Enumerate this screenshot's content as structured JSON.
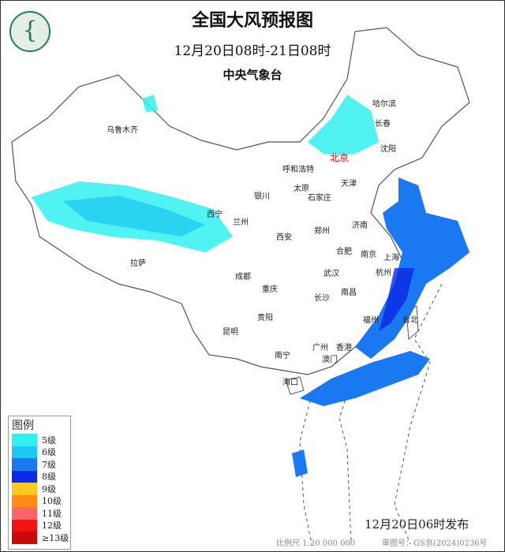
{
  "header": {
    "title": "全国大风预报图",
    "period": "12月20日08时-21日08时",
    "agency": "中央气象台"
  },
  "logo": {
    "icon": "cma-logo"
  },
  "legend": {
    "title": "图例",
    "items": [
      {
        "label": "5级",
        "color": "#33f0f0"
      },
      {
        "label": "6级",
        "color": "#1ac8f0"
      },
      {
        "label": "7级",
        "color": "#1a78f0"
      },
      {
        "label": "8级",
        "color": "#0a28e6"
      },
      {
        "label": "9级",
        "color": "#ffc81e"
      },
      {
        "label": "10级",
        "color": "#ff8c14"
      },
      {
        "label": "11级",
        "color": "#ff6464"
      },
      {
        "label": "12级",
        "color": "#f01414"
      },
      {
        "label": "≥13级",
        "color": "#c80a0a"
      }
    ]
  },
  "cities": [
    "乌鲁木齐",
    "哈尔滨",
    "长春",
    "沈阳",
    "北京",
    "呼和浩特",
    "天津",
    "银川",
    "太原",
    "石家庄",
    "西宁",
    "兰州",
    "济南",
    "郑州",
    "西安",
    "合肥",
    "南京",
    "上海",
    "拉萨",
    "成都",
    "武汉",
    "杭州",
    "重庆",
    "长沙",
    "南昌",
    "福州",
    "台北",
    "贵阳",
    "昆明",
    "南宁",
    "广州",
    "香港",
    "澳门",
    "海口"
  ],
  "footer": {
    "issued": "12月20日06时发布",
    "scale": "比例尺 1:20 000 000",
    "review_no": "审图号：GS京(2024)0236号"
  }
}
